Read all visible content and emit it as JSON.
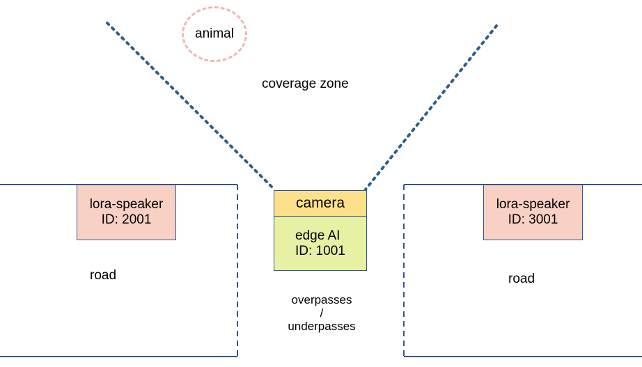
{
  "animal": "animal",
  "coverage_zone": "coverage zone",
  "camera": "camera",
  "edge_ai": {
    "line1": "edge AI",
    "line2": "ID: 1001"
  },
  "speaker_left": {
    "line1": "lora-speaker",
    "line2": "ID: 2001"
  },
  "speaker_right": {
    "line1": "lora-speaker",
    "line2": "ID: 3001"
  },
  "road_left": "road",
  "road_right": "road",
  "crossing": {
    "line1": "overpasses",
    "line2": "/",
    "line3": "underpasses"
  },
  "colors": {
    "line": "#2f5597",
    "coverage_line": "#2e5e8e",
    "speaker_fill": "#f8d0c4",
    "camera_fill": "#fde18a",
    "edge_fill": "#e7f0a3",
    "animal_outline": "#f0b7b7"
  }
}
